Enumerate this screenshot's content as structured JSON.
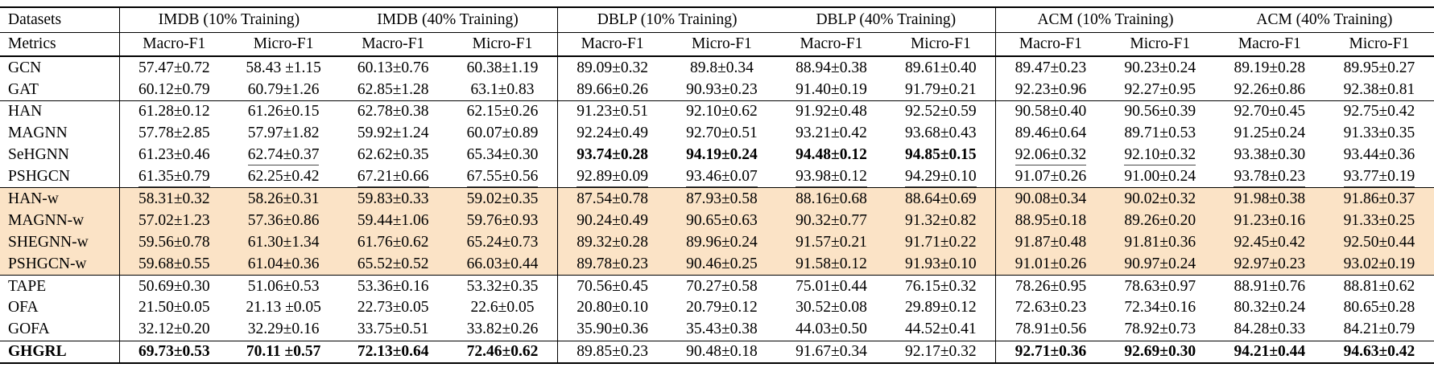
{
  "table": {
    "corner_labels": {
      "datasets": "Datasets",
      "metrics": "Metrics"
    },
    "dataset_groups": [
      {
        "label": "IMDB (10% Training)"
      },
      {
        "label": "IMDB (40% Training)"
      },
      {
        "label": "DBLP (10% Training)"
      },
      {
        "label": "DBLP (40% Training)"
      },
      {
        "label": "ACM (10% Training)"
      },
      {
        "label": "ACM (40% Training)"
      }
    ],
    "metric_labels": [
      "Macro-F1",
      "Micro-F1",
      "Macro-F1",
      "Micro-F1",
      "Macro-F1",
      "Micro-F1",
      "Macro-F1",
      "Micro-F1",
      "Macro-F1",
      "Micro-F1",
      "Macro-F1",
      "Micro-F1"
    ],
    "highlight_color": "#fbe3c6",
    "rows": [
      {
        "method": "GCN",
        "section_start": false,
        "highlight": false,
        "bold_label": false,
        "values": [
          "57.47±0.72",
          "58.43 ±1.15",
          "60.13±0.76",
          "60.38±1.19",
          "89.09±0.32",
          "89.8±0.34",
          "88.94±0.38",
          "89.61±0.40",
          "89.47±0.23",
          "90.23±0.24",
          "89.19±0.28",
          "89.95±0.27"
        ],
        "bold": [],
        "underline": []
      },
      {
        "method": "GAT",
        "section_start": false,
        "highlight": false,
        "bold_label": false,
        "values": [
          "60.12±0.79",
          "60.79±1.26",
          "62.85±1.28",
          "63.1±0.83",
          "89.66±0.26",
          "90.93±0.23",
          "91.40±0.19",
          "91.79±0.21",
          "92.23±0.96",
          "92.27±0.95",
          "92.26±0.86",
          "92.38±0.81"
        ],
        "bold": [],
        "underline": []
      },
      {
        "method": "HAN",
        "section_start": true,
        "highlight": false,
        "bold_label": false,
        "values": [
          "61.28±0.12",
          "61.26±0.15",
          "62.78±0.38",
          "62.15±0.26",
          "91.23±0.51",
          "92.10±0.62",
          "91.92±0.48",
          "92.52±0.59",
          "90.58±0.40",
          "90.56±0.39",
          "92.70±0.45",
          "92.75±0.42"
        ],
        "bold": [],
        "underline": []
      },
      {
        "method": "MAGNN",
        "section_start": false,
        "highlight": false,
        "bold_label": false,
        "values": [
          "57.78±2.85",
          "57.97±1.82",
          "59.92±1.24",
          "60.07±0.89",
          "92.24±0.49",
          "92.70±0.51",
          "93.21±0.42",
          "93.68±0.43",
          "89.46±0.64",
          "89.71±0.53",
          "91.25±0.24",
          "91.33±0.35"
        ],
        "bold": [],
        "underline": []
      },
      {
        "method": "SeHGNN",
        "section_start": false,
        "highlight": false,
        "bold_label": false,
        "values": [
          "61.23±0.46",
          "62.74±0.37",
          "62.62±0.35",
          "65.34±0.30",
          "93.74±0.28",
          "94.19±0.24",
          "94.48±0.12",
          "94.85±0.15",
          "92.06±0.32",
          "92.10±0.32",
          "93.38±0.30",
          "93.44±0.36"
        ],
        "bold": [
          4,
          5,
          6,
          7
        ],
        "underline": [
          1,
          8,
          9
        ]
      },
      {
        "method": "PSHGCN",
        "section_start": false,
        "highlight": false,
        "bold_label": false,
        "values": [
          "61.35±0.79",
          "62.25±0.42",
          "67.21±0.66",
          "67.55±0.56",
          "92.89±0.09",
          "93.46±0.07",
          "93.98±0.12",
          "94.29±0.10",
          "91.07±0.26",
          "91.00±0.24",
          "93.78±0.23",
          "93.77±0.19"
        ],
        "bold": [],
        "underline": [
          0,
          2,
          3,
          4,
          5,
          6,
          7,
          10,
          11
        ]
      },
      {
        "method": "HAN-w",
        "section_start": true,
        "highlight": true,
        "bold_label": false,
        "values": [
          "58.31±0.32",
          "58.26±0.31",
          "59.83±0.33",
          "59.02±0.35",
          "87.54±0.78",
          "87.93±0.58",
          "88.16±0.68",
          "88.64±0.69",
          "90.08±0.34",
          "90.02±0.32",
          "91.98±0.38",
          "91.86±0.37"
        ],
        "bold": [],
        "underline": []
      },
      {
        "method": "MAGNN-w",
        "section_start": false,
        "highlight": true,
        "bold_label": false,
        "values": [
          "57.02±1.23",
          "57.36±0.86",
          "59.44±1.06",
          "59.76±0.93",
          "90.24±0.49",
          "90.65±0.63",
          "90.32±0.77",
          "91.32±0.82",
          "88.95±0.18",
          "89.26±0.20",
          "91.23±0.16",
          "91.33±0.25"
        ],
        "bold": [],
        "underline": []
      },
      {
        "method": "SHEGNN-w",
        "section_start": false,
        "highlight": true,
        "bold_label": false,
        "values": [
          "59.56±0.78",
          "61.30±1.34",
          "61.76±0.62",
          "65.24±0.73",
          "89.32±0.28",
          "89.96±0.24",
          "91.57±0.21",
          "91.71±0.22",
          "91.87±0.48",
          "91.81±0.36",
          "92.45±0.42",
          "92.50±0.44"
        ],
        "bold": [],
        "underline": []
      },
      {
        "method": "PSHGCN-w",
        "section_start": false,
        "highlight": true,
        "bold_label": false,
        "values": [
          "59.68±0.55",
          "61.04±0.36",
          "65.52±0.52",
          "66.03±0.44",
          "89.78±0.23",
          "90.46±0.25",
          "91.58±0.12",
          "91.93±0.10",
          "91.01±0.26",
          "90.97±0.24",
          "92.97±0.23",
          "93.02±0.19"
        ],
        "bold": [],
        "underline": []
      },
      {
        "method": "TAPE",
        "section_start": true,
        "highlight": false,
        "bold_label": false,
        "values": [
          "50.69±0.30",
          "51.06±0.53",
          "53.36±0.16",
          "53.32±0.35",
          "70.56±0.45",
          "70.27±0.58",
          "75.01±0.44",
          "76.15±0.32",
          "78.26±0.95",
          "78.63±0.97",
          "88.91±0.76",
          "88.81±0.62"
        ],
        "bold": [],
        "underline": []
      },
      {
        "method": "OFA",
        "section_start": false,
        "highlight": false,
        "bold_label": false,
        "values": [
          "21.50±0.05",
          "21.13 ±0.05",
          "22.73±0.05",
          "22.6±0.05",
          "20.80±0.10",
          "20.79±0.12",
          "30.52±0.08",
          "29.89±0.12",
          "72.63±0.23",
          "72.34±0.16",
          "80.32±0.24",
          "80.65±0.28"
        ],
        "bold": [],
        "underline": []
      },
      {
        "method": "GOFA",
        "section_start": false,
        "highlight": false,
        "bold_label": false,
        "values": [
          "32.12±0.20",
          "32.29±0.16",
          "33.75±0.51",
          "33.82±0.26",
          "35.90±0.36",
          "35.43±0.38",
          "44.03±0.50",
          "44.52±0.41",
          "78.91±0.56",
          "78.92±0.73",
          "84.28±0.33",
          "84.21±0.79"
        ],
        "bold": [],
        "underline": []
      },
      {
        "method": "GHGRL",
        "section_start": true,
        "highlight": false,
        "bold_label": true,
        "values": [
          "69.73±0.53",
          "70.11 ±0.57",
          "72.13±0.64",
          "72.46±0.62",
          "89.85±0.23",
          "90.48±0.18",
          "91.67±0.34",
          "92.17±0.32",
          "92.71±0.36",
          "92.69±0.30",
          "94.21±0.44",
          "94.63±0.42"
        ],
        "bold": [
          0,
          1,
          2,
          3,
          8,
          9,
          10,
          11
        ],
        "underline": []
      }
    ]
  }
}
